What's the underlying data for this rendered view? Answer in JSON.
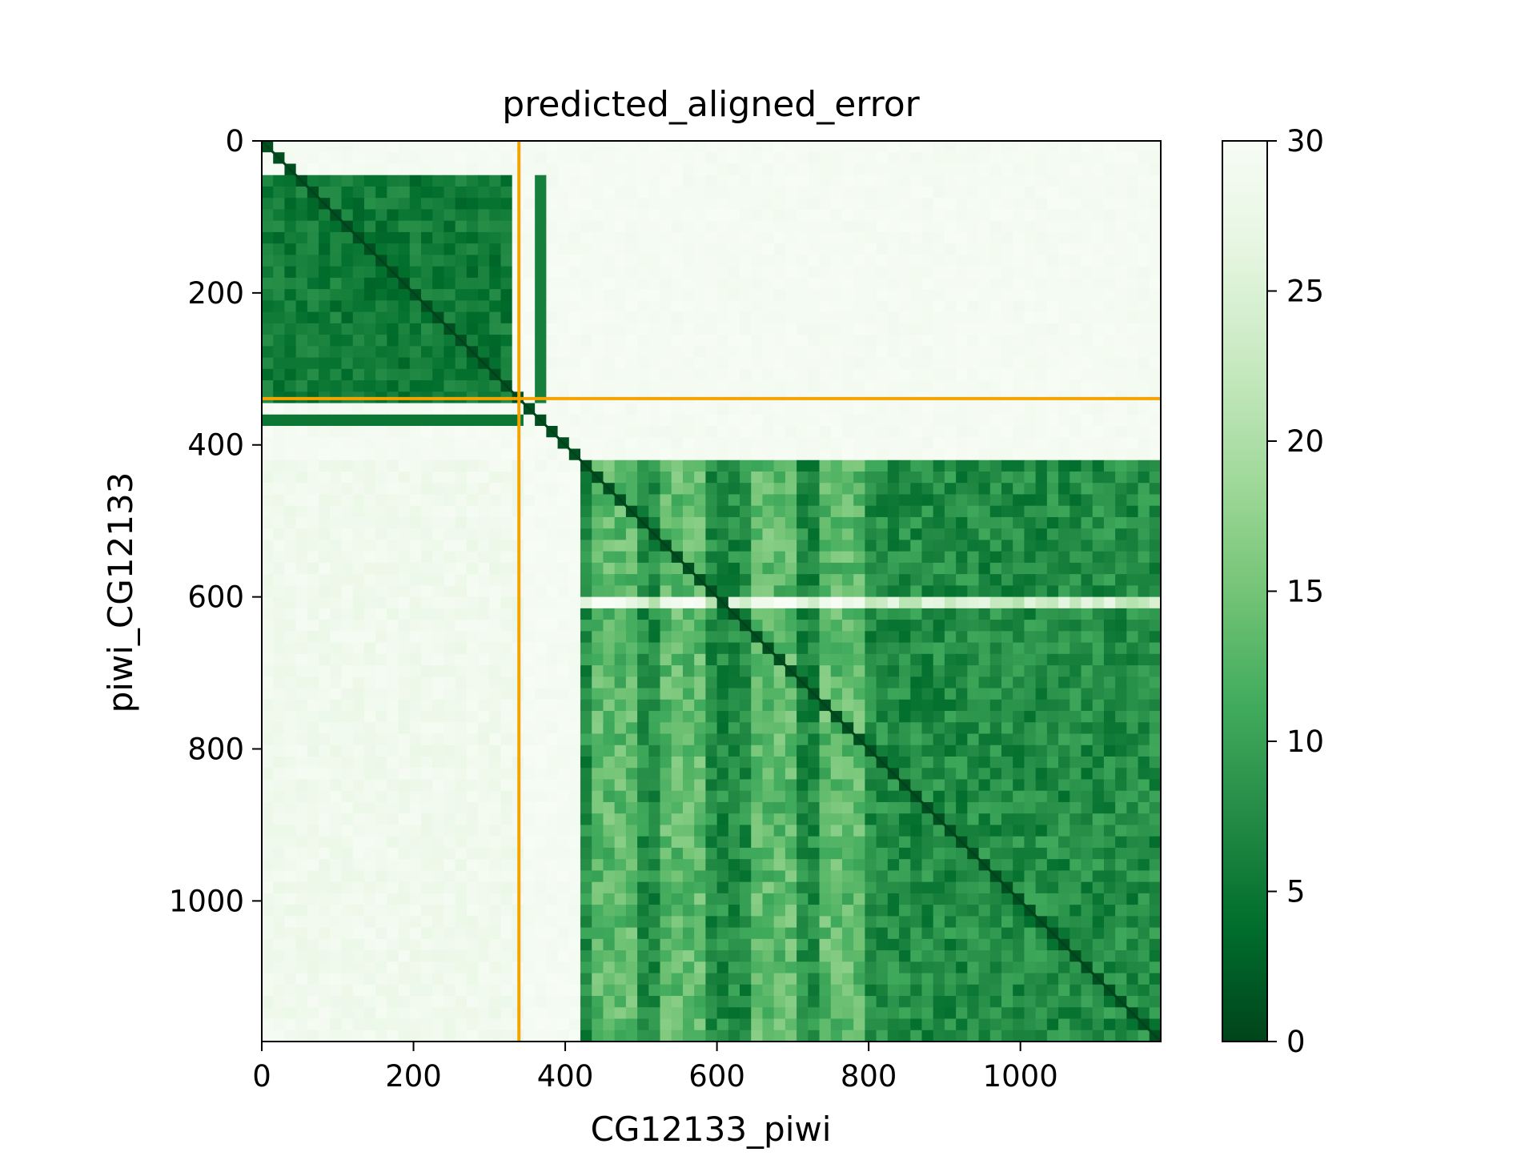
{
  "chart_data": {
    "type": "heatmap",
    "title": "predicted_aligned_error",
    "xlabel": "CG12133_piwi",
    "ylabel": "piwi_CG12133",
    "n_residues": 1185,
    "chain_boundary": 339,
    "domain_blocks": [
      {
        "start": 0,
        "end": 339
      },
      {
        "start": 415,
        "end": 1185
      }
    ],
    "x_ticks": [
      0,
      200,
      400,
      600,
      800,
      1000
    ],
    "x_tick_labels": [
      "0",
      "200",
      "400",
      "600",
      "800",
      "1000"
    ],
    "y_ticks": [
      0,
      200,
      400,
      600,
      800,
      1000
    ],
    "y_tick_labels": [
      "0",
      "200",
      "400",
      "600",
      "800",
      "1000"
    ],
    "xlim": [
      0,
      1185
    ],
    "ylim": [
      1185,
      0
    ],
    "colorbar": {
      "min": 0,
      "max": 30,
      "ticks": [
        0,
        5,
        10,
        15,
        20,
        25,
        30
      ],
      "tick_labels": [
        "0",
        "5",
        "10",
        "15",
        "20",
        "25",
        "30"
      ],
      "colormap": "Greens_r",
      "colors": [
        "#00441b",
        "#006d2c",
        "#238b45",
        "#41ab5d",
        "#74c476",
        "#a1d99b",
        "#c7e9c0",
        "#e5f5e0",
        "#f7fcf5"
      ]
    },
    "boundary_line_color": "#f5a300",
    "grid": false
  }
}
